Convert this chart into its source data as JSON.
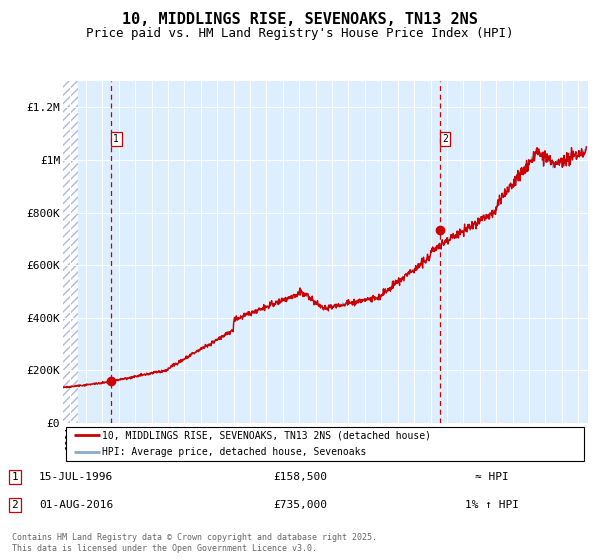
{
  "title": "10, MIDDLINGS RISE, SEVENOAKS, TN13 2NS",
  "subtitle": "Price paid vs. HM Land Registry's House Price Index (HPI)",
  "title_fontsize": 11,
  "subtitle_fontsize": 9,
  "background_color": "#ddeeff",
  "hatch_color": "#aabbcc",
  "grid_color": "#ffffff",
  "line1_color": "#cc0000",
  "line2_color": "#88aacc",
  "ylim": [
    0,
    1300000
  ],
  "yticks": [
    0,
    200000,
    400000,
    600000,
    800000,
    1000000,
    1200000
  ],
  "ytick_labels": [
    "£0",
    "£200K",
    "£400K",
    "£600K",
    "£800K",
    "£1M",
    "£1.2M"
  ],
  "marker1_x": 1996.54,
  "marker1_y": 158500,
  "marker2_x": 2016.58,
  "marker2_y": 735000,
  "vline1_x": 1996.54,
  "vline2_x": 2016.58,
  "legend_line1": "10, MIDDLINGS RISE, SEVENOAKS, TN13 2NS (detached house)",
  "legend_line2": "HPI: Average price, detached house, Sevenoaks",
  "note1_label": "1",
  "note1_date": "15-JUL-1996",
  "note1_price": "£158,500",
  "note1_hpi": "≈ HPI",
  "note2_label": "2",
  "note2_date": "01-AUG-2016",
  "note2_price": "£735,000",
  "note2_hpi": "1% ↑ HPI",
  "footer": "Contains HM Land Registry data © Crown copyright and database right 2025.\nThis data is licensed under the Open Government Licence v3.0.",
  "hatch_end_year": 1994.5,
  "xmin": 1993.6,
  "xmax": 2025.6
}
